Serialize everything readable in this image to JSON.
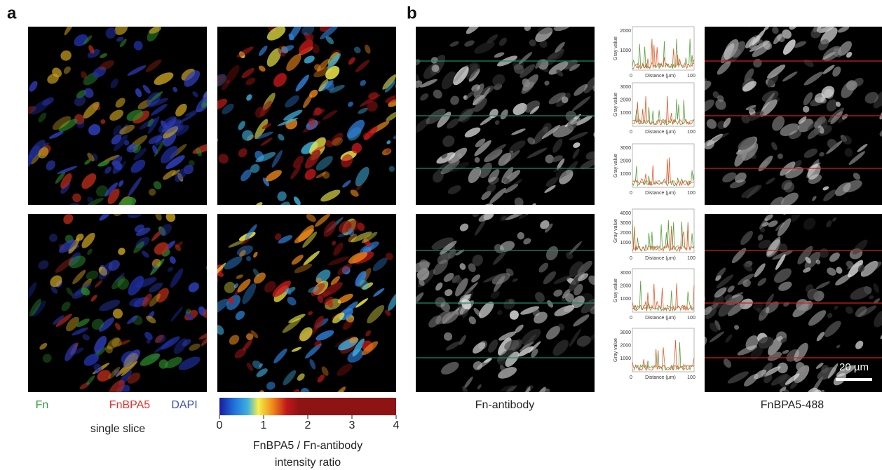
{
  "panel_a": {
    "label": "a",
    "legend": {
      "fn": "Fn",
      "fnbpa5": "FnBPA5",
      "dapi": "DAPI",
      "caption": "single slice"
    },
    "colorbar": {
      "ticks": [
        "0",
        "1",
        "2",
        "3",
        "4"
      ],
      "title_line1": "FnBPA5 / Fn-antibody",
      "title_line2": "intensity ratio"
    }
  },
  "panel_b": {
    "label": "b",
    "left_caption": "Fn-antibody",
    "right_caption": "FnBPA5-488",
    "scale_bar": "20 µm",
    "profiles": [
      {
        "y_label": "Gray value",
        "x_label": "Distance (µm)",
        "x_ticks": [
          "0",
          "100"
        ],
        "y_ticks": [
          "1000",
          "2000"
        ]
      },
      {
        "y_label": "Gray value",
        "x_label": "Distance (µm)",
        "x_ticks": [
          "0",
          "100"
        ],
        "y_ticks": [
          "1000",
          "2000",
          "3000"
        ]
      },
      {
        "y_label": "Gray value",
        "x_label": "Distance (µm)",
        "x_ticks": [
          "0",
          "100"
        ],
        "y_ticks": [
          "1000",
          "2000",
          "3000"
        ]
      },
      {
        "y_label": "Gray value",
        "x_label": "Distance (µm)",
        "x_ticks": [
          "0",
          "100"
        ],
        "y_ticks": [
          "1000",
          "2000",
          "3000",
          "4000"
        ]
      },
      {
        "y_label": "Gray value",
        "x_label": "Distance (µm)",
        "x_ticks": [
          "0",
          "100"
        ],
        "y_ticks": [
          "1000",
          "2000",
          "3000"
        ]
      },
      {
        "y_label": "Gray value",
        "x_label": "Distance (µm)",
        "x_ticks": [
          "0",
          "100"
        ],
        "y_ticks": [
          "1000",
          "2000",
          "3000"
        ]
      }
    ]
  }
}
